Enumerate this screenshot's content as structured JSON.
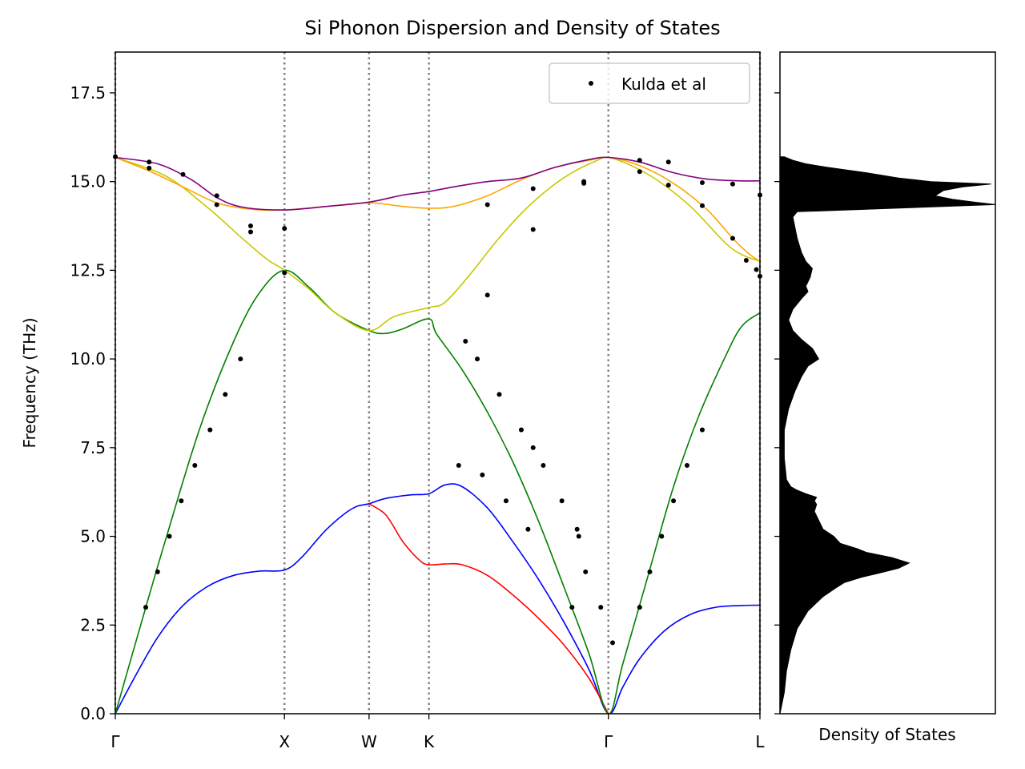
{
  "title": "Si Phonon Dispersion and Density of States",
  "colors": {
    "acoustic_ta1": "#0000ff",
    "acoustic_ta2": "#ff0000",
    "acoustic_la": "#008000",
    "optical_lo": "#c8c800",
    "optical_to1": "#ffa500",
    "optical_to2": "#800080",
    "experiment": "#000000",
    "dos_fill": "#000000",
    "high_symmetry_line": "#808080"
  },
  "chart_data": [
    {
      "type": "line",
      "name": "dispersion",
      "ylabel": "Frequency (THz)",
      "xlabel": "",
      "ylim": [
        0,
        18.65
      ],
      "yticks": [
        "0.0",
        "2.5",
        "5.0",
        "7.5",
        "10.0",
        "12.5",
        "15.0",
        "17.5"
      ],
      "ytick_values": [
        0,
        2.5,
        5.0,
        7.5,
        10.0,
        12.5,
        15.0,
        17.5
      ],
      "path_length": 3.811,
      "high_symmetry_points": [
        {
          "label": "Γ",
          "x": 0.0
        },
        {
          "label": "X",
          "x": 1.0
        },
        {
          "label": "W",
          "x": 1.5
        },
        {
          "label": "K",
          "x": 1.854
        },
        {
          "label": "Γ",
          "x": 2.915
        },
        {
          "label": "L",
          "x": 3.811
        }
      ],
      "grid": false,
      "legend": {
        "placement": "upper right",
        "entries": [
          "Kulda et al"
        ]
      },
      "series": [
        {
          "key": "acoustic_ta1",
          "points": [
            [
              0,
              0
            ],
            [
              0.1,
              0.9
            ],
            [
              0.25,
              2.15
            ],
            [
              0.4,
              3.05
            ],
            [
              0.55,
              3.6
            ],
            [
              0.7,
              3.9
            ],
            [
              0.85,
              4.02
            ],
            [
              1.0,
              4.05
            ],
            [
              1.1,
              4.4
            ],
            [
              1.25,
              5.2
            ],
            [
              1.4,
              5.78
            ],
            [
              1.5,
              5.92
            ],
            [
              1.6,
              6.07
            ],
            [
              1.75,
              6.17
            ],
            [
              1.854,
              6.2
            ],
            [
              1.95,
              6.45
            ],
            [
              2.05,
              6.4
            ],
            [
              2.2,
              5.8
            ],
            [
              2.35,
              4.85
            ],
            [
              2.5,
              3.8
            ],
            [
              2.65,
              2.6
            ],
            [
              2.8,
              1.25
            ],
            [
              2.915,
              0
            ],
            [
              3.0,
              0.75
            ],
            [
              3.1,
              1.55
            ],
            [
              3.25,
              2.35
            ],
            [
              3.4,
              2.8
            ],
            [
              3.55,
              3.0
            ],
            [
              3.7,
              3.05
            ],
            [
              3.811,
              3.06
            ]
          ]
        },
        {
          "key": "acoustic_ta2",
          "points": [
            [
              1.5,
              5.92
            ],
            [
              1.6,
              5.6
            ],
            [
              1.7,
              4.85
            ],
            [
              1.8,
              4.32
            ],
            [
              1.854,
              4.2
            ],
            [
              1.95,
              4.22
            ],
            [
              2.05,
              4.2
            ],
            [
              2.2,
              3.9
            ],
            [
              2.35,
              3.35
            ],
            [
              2.5,
              2.7
            ],
            [
              2.65,
              1.95
            ],
            [
              2.8,
              1.0
            ],
            [
              2.915,
              0
            ]
          ]
        },
        {
          "key": "acoustic_la",
          "points": [
            [
              0,
              0
            ],
            [
              0.15,
              2.5
            ],
            [
              0.3,
              4.95
            ],
            [
              0.5,
              8.05
            ],
            [
              0.7,
              10.5
            ],
            [
              0.85,
              11.85
            ],
            [
              1.0,
              12.5
            ],
            [
              1.15,
              12.0
            ],
            [
              1.3,
              11.3
            ],
            [
              1.5,
              10.8
            ],
            [
              1.6,
              10.72
            ],
            [
              1.7,
              10.85
            ],
            [
              1.854,
              11.13
            ],
            [
              1.9,
              10.7
            ],
            [
              2.05,
              9.7
            ],
            [
              2.2,
              8.5
            ],
            [
              2.35,
              7.1
            ],
            [
              2.5,
              5.45
            ],
            [
              2.65,
              3.6
            ],
            [
              2.8,
              1.7
            ],
            [
              2.915,
              0
            ],
            [
              3.0,
              1.4
            ],
            [
              3.15,
              3.9
            ],
            [
              3.3,
              6.4
            ],
            [
              3.45,
              8.4
            ],
            [
              3.6,
              10.0
            ],
            [
              3.7,
              10.9
            ],
            [
              3.811,
              11.3
            ]
          ]
        },
        {
          "key": "optical_lo",
          "points": [
            [
              0,
              15.68
            ],
            [
              0.3,
              15.15
            ],
            [
              0.55,
              14.25
            ],
            [
              0.75,
              13.4
            ],
            [
              0.9,
              12.8
            ],
            [
              1.0,
              12.5
            ],
            [
              1.15,
              11.95
            ],
            [
              1.3,
              11.3
            ],
            [
              1.5,
              10.8
            ],
            [
              1.65,
              11.2
            ],
            [
              1.854,
              11.45
            ],
            [
              1.95,
              11.6
            ],
            [
              2.1,
              12.4
            ],
            [
              2.25,
              13.3
            ],
            [
              2.4,
              14.1
            ],
            [
              2.55,
              14.75
            ],
            [
              2.7,
              15.25
            ],
            [
              2.85,
              15.6
            ],
            [
              2.915,
              15.68
            ],
            [
              3.05,
              15.45
            ],
            [
              3.2,
              15.05
            ],
            [
              3.4,
              14.3
            ],
            [
              3.6,
              13.3
            ],
            [
              3.7,
              12.95
            ],
            [
              3.811,
              12.75
            ]
          ]
        },
        {
          "key": "optical_to1",
          "points": [
            [
              0,
              15.68
            ],
            [
              0.2,
              15.3
            ],
            [
              0.4,
              14.85
            ],
            [
              0.6,
              14.4
            ],
            [
              0.8,
              14.22
            ],
            [
              1.0,
              14.2
            ],
            [
              1.25,
              14.3
            ],
            [
              1.5,
              14.4
            ],
            [
              1.7,
              14.3
            ],
            [
              1.854,
              14.25
            ],
            [
              2.0,
              14.3
            ],
            [
              2.2,
              14.6
            ],
            [
              2.4,
              15.05
            ],
            [
              2.6,
              15.4
            ],
            [
              2.8,
              15.6
            ],
            [
              2.915,
              15.68
            ],
            [
              3.1,
              15.45
            ],
            [
              3.3,
              14.95
            ],
            [
              3.5,
              14.2
            ],
            [
              3.65,
              13.4
            ],
            [
              3.75,
              12.95
            ],
            [
              3.811,
              12.75
            ]
          ]
        },
        {
          "key": "optical_to2",
          "points": [
            [
              0,
              15.68
            ],
            [
              0.25,
              15.5
            ],
            [
              0.45,
              15.05
            ],
            [
              0.6,
              14.55
            ],
            [
              0.75,
              14.28
            ],
            [
              1.0,
              14.2
            ],
            [
              1.25,
              14.3
            ],
            [
              1.5,
              14.42
            ],
            [
              1.7,
              14.62
            ],
            [
              1.854,
              14.72
            ],
            [
              2.0,
              14.85
            ],
            [
              2.2,
              15.0
            ],
            [
              2.4,
              15.1
            ],
            [
              2.6,
              15.4
            ],
            [
              2.8,
              15.62
            ],
            [
              2.915,
              15.68
            ],
            [
              3.1,
              15.55
            ],
            [
              3.3,
              15.25
            ],
            [
              3.5,
              15.07
            ],
            [
              3.7,
              15.02
            ],
            [
              3.811,
              15.02
            ]
          ]
        }
      ],
      "experiment": {
        "name": "Kulda et al",
        "points": [
          [
            0.0,
            15.7
          ],
          [
            0.2,
            15.55
          ],
          [
            0.2,
            15.38
          ],
          [
            0.4,
            15.2
          ],
          [
            0.6,
            14.6
          ],
          [
            0.6,
            14.35
          ],
          [
            0.8,
            13.75
          ],
          [
            0.8,
            13.58
          ],
          [
            1.0,
            13.68
          ],
          [
            1.0,
            12.43
          ],
          [
            0.18,
            3.0
          ],
          [
            0.25,
            4.0
          ],
          [
            0.32,
            5.0
          ],
          [
            0.39,
            6.0
          ],
          [
            0.47,
            7.0
          ],
          [
            0.56,
            8.0
          ],
          [
            0.65,
            9.0
          ],
          [
            0.74,
            10.0
          ],
          [
            2.07,
            10.5
          ],
          [
            2.14,
            10.0
          ],
          [
            2.2,
            11.8
          ],
          [
            2.2,
            14.35
          ],
          [
            2.27,
            9.0
          ],
          [
            2.4,
            8.0
          ],
          [
            2.47,
            7.5
          ],
          [
            2.53,
            7.0
          ],
          [
            2.47,
            14.8
          ],
          [
            2.47,
            13.65
          ],
          [
            2.64,
            6.0
          ],
          [
            2.73,
            5.2
          ],
          [
            2.74,
            5.0
          ],
          [
            2.78,
            4.0
          ],
          [
            2.7,
            3.0
          ],
          [
            2.87,
            3.0
          ],
          [
            2.94,
            2.0
          ],
          [
            2.77,
            15.0
          ],
          [
            2.77,
            14.95
          ],
          [
            2.03,
            7.0
          ],
          [
            2.17,
            6.73
          ],
          [
            2.31,
            6.0
          ],
          [
            2.44,
            5.2
          ],
          [
            3.1,
            3.0
          ],
          [
            3.16,
            4.0
          ],
          [
            3.23,
            5.0
          ],
          [
            3.3,
            6.0
          ],
          [
            3.38,
            7.0
          ],
          [
            3.47,
            8.0
          ],
          [
            3.1,
            15.6
          ],
          [
            3.1,
            15.28
          ],
          [
            3.27,
            15.55
          ],
          [
            3.27,
            14.9
          ],
          [
            3.47,
            14.97
          ],
          [
            3.47,
            14.32
          ],
          [
            3.65,
            14.93
          ],
          [
            3.65,
            13.4
          ],
          [
            3.73,
            12.78
          ],
          [
            3.79,
            12.52
          ],
          [
            3.811,
            12.33
          ],
          [
            3.811,
            14.62
          ]
        ]
      }
    },
    {
      "type": "area",
      "name": "dos",
      "xlabel": "Density of States",
      "ylim": [
        0,
        18.65
      ],
      "points": [
        [
          0,
          0
        ],
        [
          0.02,
          0.6
        ],
        [
          0.03,
          1.2
        ],
        [
          0.05,
          1.8
        ],
        [
          0.08,
          2.4
        ],
        [
          0.13,
          2.9
        ],
        [
          0.2,
          3.3
        ],
        [
          0.26,
          3.55
        ],
        [
          0.3,
          3.7
        ],
        [
          0.38,
          3.85
        ],
        [
          0.45,
          3.95
        ],
        [
          0.55,
          4.1
        ],
        [
          0.6,
          4.25
        ],
        [
          0.52,
          4.4
        ],
        [
          0.4,
          4.55
        ],
        [
          0.36,
          4.65
        ],
        [
          0.28,
          4.8
        ],
        [
          0.25,
          5.0
        ],
        [
          0.2,
          5.2
        ],
        [
          0.18,
          5.45
        ],
        [
          0.16,
          5.7
        ],
        [
          0.17,
          5.9
        ],
        [
          0.16,
          6.0
        ],
        [
          0.17,
          6.1
        ],
        [
          0.12,
          6.2
        ],
        [
          0.08,
          6.3
        ],
        [
          0.05,
          6.4
        ],
        [
          0.03,
          6.6
        ],
        [
          0.02,
          7.2
        ],
        [
          0.02,
          8.0
        ],
        [
          0.04,
          8.6
        ],
        [
          0.07,
          9.1
        ],
        [
          0.1,
          9.5
        ],
        [
          0.13,
          9.8
        ],
        [
          0.18,
          10.0
        ],
        [
          0.15,
          10.3
        ],
        [
          0.1,
          10.55
        ],
        [
          0.06,
          10.8
        ],
        [
          0.04,
          11.1
        ],
        [
          0.06,
          11.4
        ],
        [
          0.1,
          11.7
        ],
        [
          0.13,
          11.9
        ],
        [
          0.12,
          12.05
        ],
        [
          0.14,
          12.3
        ],
        [
          0.15,
          12.55
        ],
        [
          0.12,
          12.75
        ],
        [
          0.1,
          13.0
        ],
        [
          0.08,
          13.4
        ],
        [
          0.07,
          13.7
        ],
        [
          0.06,
          14.0
        ],
        [
          0.08,
          14.15
        ],
        [
          1.0,
          14.35
        ],
        [
          0.9,
          14.42
        ],
        [
          0.8,
          14.5
        ],
        [
          0.72,
          14.6
        ],
        [
          0.76,
          14.75
        ],
        [
          0.85,
          14.85
        ],
        [
          0.98,
          14.93
        ],
        [
          0.7,
          15.0
        ],
        [
          0.55,
          15.1
        ],
        [
          0.4,
          15.25
        ],
        [
          0.22,
          15.4
        ],
        [
          0.12,
          15.5
        ],
        [
          0.06,
          15.6
        ],
        [
          0.02,
          15.7
        ],
        [
          0,
          15.7
        ]
      ]
    }
  ]
}
